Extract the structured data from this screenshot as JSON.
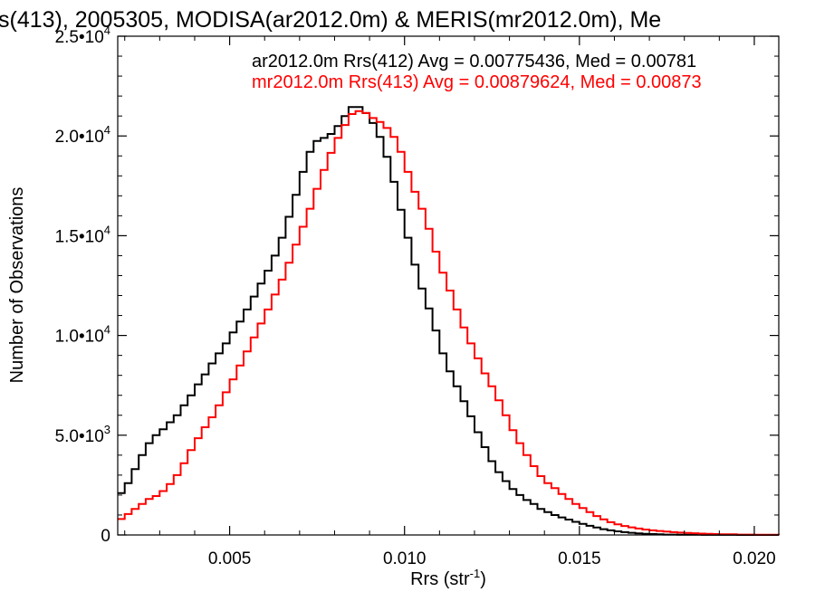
{
  "chart_data": {
    "type": "line",
    "title": "s(413), 2005305, MODISA(ar2012.0m) & MERIS(mr2012.0m), Me",
    "xlabel": "Rrs (str",
    "xlabel_sup": "-1",
    "xlabel_close": ")",
    "ylabel": "Number of Observations",
    "xlim": [
      0.0018,
      0.0207
    ],
    "ylim": [
      0,
      25000
    ],
    "x_ticks": [
      {
        "value": 0.005,
        "label": "0.005"
      },
      {
        "value": 0.01,
        "label": "0.010"
      },
      {
        "value": 0.015,
        "label": "0.015"
      },
      {
        "value": 0.02,
        "label": "0.020"
      }
    ],
    "y_ticks": [
      {
        "value": 0,
        "mant": "0",
        "exp": ""
      },
      {
        "value": 5000,
        "mant": "5.0•10",
        "exp": "3"
      },
      {
        "value": 10000,
        "mant": "1.0•10",
        "exp": "4"
      },
      {
        "value": 15000,
        "mant": "1.5•10",
        "exp": "4"
      },
      {
        "value": 20000,
        "mant": "2.0•10",
        "exp": "4"
      },
      {
        "value": 25000,
        "mant": "2.5•10",
        "exp": "4"
      }
    ],
    "series": [
      {
        "legend": "ar2012.0m Rrs(412) Avg = 0.00775436, Med = 0.00781",
        "color": "#000000",
        "points": [
          [
            0.0018,
            2100
          ],
          [
            0.002,
            2600
          ],
          [
            0.0022,
            3300
          ],
          [
            0.0024,
            4000
          ],
          [
            0.0026,
            4600
          ],
          [
            0.0028,
            5000
          ],
          [
            0.003,
            5300
          ],
          [
            0.0032,
            5650
          ],
          [
            0.0034,
            6000
          ],
          [
            0.0036,
            6500
          ],
          [
            0.0038,
            7000
          ],
          [
            0.004,
            7550
          ],
          [
            0.0042,
            8050
          ],
          [
            0.0044,
            8600
          ],
          [
            0.0046,
            9100
          ],
          [
            0.0048,
            9600
          ],
          [
            0.005,
            10150
          ],
          [
            0.0052,
            10700
          ],
          [
            0.0054,
            11300
          ],
          [
            0.0056,
            11950
          ],
          [
            0.0058,
            12600
          ],
          [
            0.006,
            13250
          ],
          [
            0.0062,
            14000
          ],
          [
            0.0064,
            14900
          ],
          [
            0.0066,
            15950
          ],
          [
            0.0068,
            17050
          ],
          [
            0.007,
            18200
          ],
          [
            0.0072,
            19200
          ],
          [
            0.0074,
            19750
          ],
          [
            0.0076,
            19900
          ],
          [
            0.0078,
            20100
          ],
          [
            0.008,
            20500
          ],
          [
            0.0082,
            21000
          ],
          [
            0.0084,
            21450
          ],
          [
            0.0086,
            21450
          ],
          [
            0.0088,
            21150
          ],
          [
            0.009,
            20650
          ],
          [
            0.0092,
            19950
          ],
          [
            0.0094,
            18950
          ],
          [
            0.0096,
            17700
          ],
          [
            0.0098,
            16300
          ],
          [
            0.01,
            14900
          ],
          [
            0.0102,
            13550
          ],
          [
            0.0104,
            12350
          ],
          [
            0.0106,
            11350
          ],
          [
            0.0108,
            10250
          ],
          [
            0.011,
            9100
          ],
          [
            0.0112,
            8200
          ],
          [
            0.0114,
            7450
          ],
          [
            0.0116,
            6700
          ],
          [
            0.0118,
            5950
          ],
          [
            0.012,
            5150
          ],
          [
            0.0122,
            4400
          ],
          [
            0.0124,
            3700
          ],
          [
            0.0126,
            3150
          ],
          [
            0.0128,
            2700
          ],
          [
            0.013,
            2300
          ],
          [
            0.0132,
            2000
          ],
          [
            0.0134,
            1750
          ],
          [
            0.0136,
            1550
          ],
          [
            0.0138,
            1300
          ],
          [
            0.014,
            1150
          ],
          [
            0.0142,
            1000
          ],
          [
            0.0144,
            880
          ],
          [
            0.0146,
            770
          ],
          [
            0.0148,
            660
          ],
          [
            0.015,
            560
          ],
          [
            0.0152,
            460
          ],
          [
            0.0154,
            370
          ],
          [
            0.0156,
            290
          ],
          [
            0.0158,
            230
          ],
          [
            0.016,
            180
          ],
          [
            0.0162,
            140
          ],
          [
            0.0164,
            110
          ],
          [
            0.0166,
            80
          ],
          [
            0.0168,
            60
          ],
          [
            0.017,
            45
          ],
          [
            0.0172,
            30
          ],
          [
            0.0174,
            20
          ],
          [
            0.0178,
            10
          ],
          [
            0.0185,
            5
          ],
          [
            0.0195,
            2
          ],
          [
            0.0207,
            0
          ]
        ]
      },
      {
        "legend": "mr2012.0m Rrs(413) Avg = 0.00879624, Med = 0.00873",
        "color": "#ff0000",
        "points": [
          [
            0.0018,
            800
          ],
          [
            0.002,
            1050
          ],
          [
            0.0022,
            1300
          ],
          [
            0.0024,
            1550
          ],
          [
            0.0026,
            1800
          ],
          [
            0.0028,
            1950
          ],
          [
            0.003,
            2200
          ],
          [
            0.0032,
            2550
          ],
          [
            0.0034,
            3000
          ],
          [
            0.0036,
            3600
          ],
          [
            0.0038,
            4250
          ],
          [
            0.004,
            4850
          ],
          [
            0.0042,
            5400
          ],
          [
            0.0044,
            5900
          ],
          [
            0.0046,
            6500
          ],
          [
            0.0048,
            7150
          ],
          [
            0.005,
            7800
          ],
          [
            0.0052,
            8500
          ],
          [
            0.0054,
            9200
          ],
          [
            0.0056,
            9900
          ],
          [
            0.0058,
            10600
          ],
          [
            0.006,
            11300
          ],
          [
            0.0062,
            12050
          ],
          [
            0.0064,
            12800
          ],
          [
            0.0066,
            13650
          ],
          [
            0.0068,
            14550
          ],
          [
            0.007,
            15450
          ],
          [
            0.0072,
            16350
          ],
          [
            0.0074,
            17350
          ],
          [
            0.0076,
            18300
          ],
          [
            0.0078,
            19150
          ],
          [
            0.008,
            19900
          ],
          [
            0.0082,
            20550
          ],
          [
            0.0084,
            21100
          ],
          [
            0.0086,
            21250
          ],
          [
            0.0088,
            21150
          ],
          [
            0.009,
            20900
          ],
          [
            0.0092,
            20700
          ],
          [
            0.0094,
            20400
          ],
          [
            0.0096,
            19950
          ],
          [
            0.0098,
            19200
          ],
          [
            0.01,
            18200
          ],
          [
            0.0102,
            17200
          ],
          [
            0.0104,
            16350
          ],
          [
            0.0106,
            15350
          ],
          [
            0.0108,
            14200
          ],
          [
            0.011,
            13150
          ],
          [
            0.0112,
            12250
          ],
          [
            0.0114,
            11300
          ],
          [
            0.0116,
            10400
          ],
          [
            0.0118,
            9600
          ],
          [
            0.012,
            8850
          ],
          [
            0.0122,
            8100
          ],
          [
            0.0124,
            7450
          ],
          [
            0.0126,
            6750
          ],
          [
            0.0128,
            6000
          ],
          [
            0.013,
            5250
          ],
          [
            0.0132,
            4600
          ],
          [
            0.0134,
            4000
          ],
          [
            0.0136,
            3450
          ],
          [
            0.0138,
            2950
          ],
          [
            0.014,
            2600
          ],
          [
            0.0142,
            2350
          ],
          [
            0.0144,
            2050
          ],
          [
            0.0146,
            1800
          ],
          [
            0.0148,
            1550
          ],
          [
            0.015,
            1350
          ],
          [
            0.0152,
            1150
          ],
          [
            0.0154,
            950
          ],
          [
            0.0156,
            780
          ],
          [
            0.0158,
            640
          ],
          [
            0.016,
            530
          ],
          [
            0.0162,
            450
          ],
          [
            0.0164,
            380
          ],
          [
            0.0166,
            320
          ],
          [
            0.0168,
            270
          ],
          [
            0.017,
            230
          ],
          [
            0.0172,
            200
          ],
          [
            0.0174,
            170
          ],
          [
            0.0176,
            140
          ],
          [
            0.0178,
            120
          ],
          [
            0.018,
            100
          ],
          [
            0.0182,
            85
          ],
          [
            0.0184,
            70
          ],
          [
            0.0186,
            55
          ],
          [
            0.0188,
            45
          ],
          [
            0.019,
            35
          ],
          [
            0.0195,
            20
          ],
          [
            0.02,
            10
          ],
          [
            0.0207,
            5
          ]
        ]
      }
    ]
  }
}
